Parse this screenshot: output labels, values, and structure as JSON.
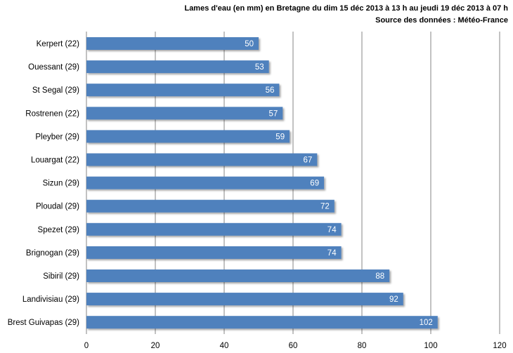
{
  "chart_data": {
    "type": "bar",
    "orientation": "horizontal",
    "title": "Lames d'eau (en mm) en Bretagne du dim 15 déc 2013 à 13 h au jeudi 19 déc 2013 à 07 h",
    "subtitle": "Source des données : Météo-France",
    "categories": [
      "Kerpert (22)",
      "Ouessant (29)",
      "St Segal (29)",
      "Rostrenen (22)",
      "Pleyber (29)",
      "Louargat (22)",
      "Sizun (29)",
      "Ploudal (29)",
      "Spezet (29)",
      "Brignogan (29)",
      "Sibiril (29)",
      "Landivisiau (29)",
      "Brest Guivapas  (29)"
    ],
    "values": [
      50,
      53,
      56,
      57,
      59,
      67,
      69,
      72,
      74,
      74,
      88,
      92,
      102
    ],
    "xlim": [
      0,
      120
    ],
    "xticks": [
      0,
      20,
      40,
      60,
      80,
      100,
      120
    ],
    "xlabel": "",
    "ylabel": "",
    "grid": "vertical",
    "data_labels": true,
    "bar_color": "#4F81BD",
    "grid_color": "#868686"
  }
}
